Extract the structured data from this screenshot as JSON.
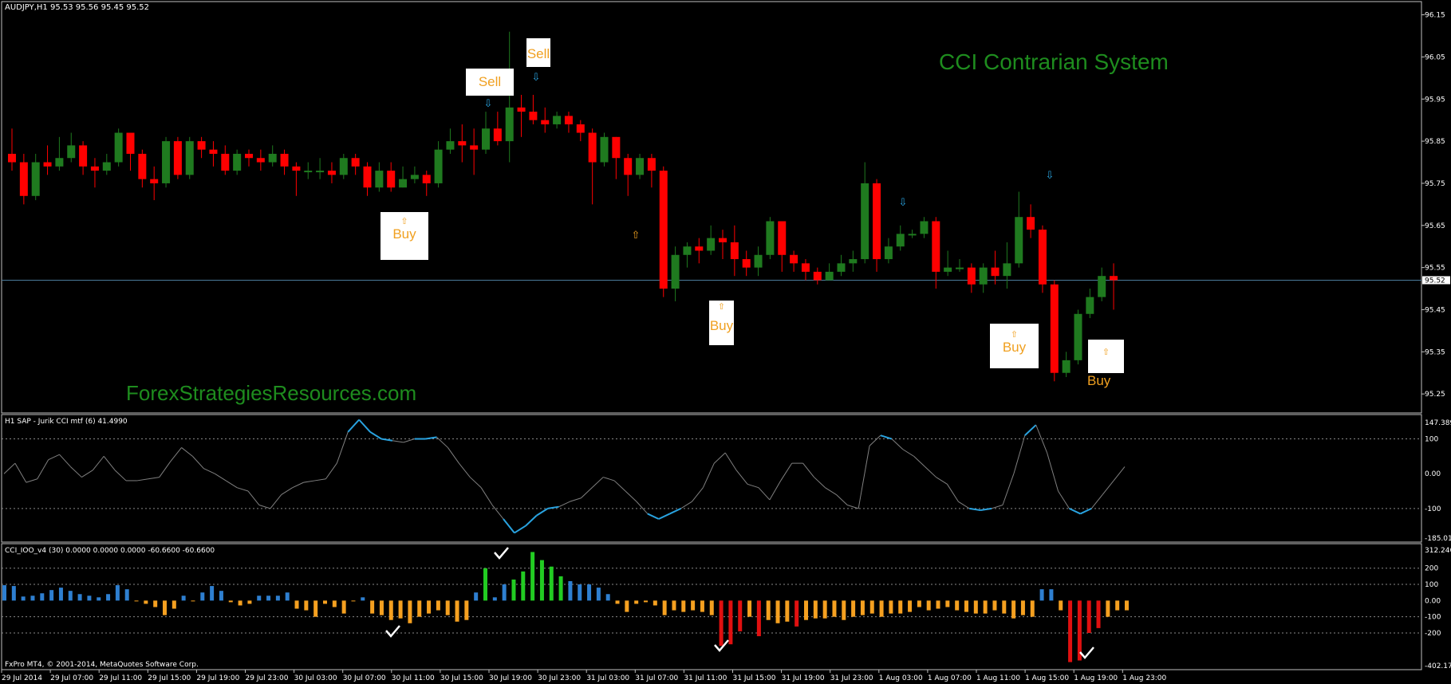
{
  "header": {
    "symbol_info": "AUDJPY,H1  95.53 95.56 95.45 95.52"
  },
  "overlay": {
    "system_title": "CCI Contrarian System",
    "website": "ForexStrategiesResources.com",
    "copyright": "FxPro MT4, © 2001-2014, MetaQuotes Software Corp."
  },
  "signals": {
    "buy_label": "Buy",
    "sell_label": "Sell",
    "up_arrow": "⇧",
    "down_arrow": "⇩"
  },
  "indicators": {
    "jurik_label": "H1 SAP - Jurik CCI mtf (6) 41.4990",
    "cci_label": "CCI_IOO_v4 (30) 0.0000 0.0000 0.0000 -60.6600 -60.6600"
  },
  "colors": {
    "bull": "#1f7a1f",
    "bear": "#ff0000",
    "cci_line": "#808080",
    "cci_extreme": "#29a3e0",
    "hist_blue": "#2e7fd0",
    "hist_orange": "#f5a020",
    "hist_green": "#22cc22",
    "hist_red": "#e01010",
    "signal_text": "#f0a020",
    "site_green": "#1e8c1e"
  },
  "price_axis": {
    "ticks": [
      "96.15",
      "96.05",
      "95.95",
      "95.85",
      "95.75",
      "95.65",
      "95.55",
      "95.45",
      "95.35",
      "95.25"
    ],
    "current": "95.52"
  },
  "jurik_axis": {
    "ticks": [
      "147.3893",
      "100",
      "0.00",
      "-100",
      "-185.0143"
    ]
  },
  "cci_axis": {
    "ticks": [
      "312.2467",
      "200",
      "100",
      "0.00",
      "-100",
      "-200",
      "-402.1705"
    ]
  },
  "time_axis": {
    "labels": [
      "29 Jul 2014",
      "29 Jul 07:00",
      "29 Jul 11:00",
      "29 Jul 15:00",
      "29 Jul 19:00",
      "29 Jul 23:00",
      "30 Jul 03:00",
      "30 Jul 07:00",
      "30 Jul 11:00",
      "30 Jul 15:00",
      "30 Jul 19:00",
      "30 Jul 23:00",
      "31 Jul 03:00",
      "31 Jul 07:00",
      "31 Jul 11:00",
      "31 Jul 15:00",
      "31 Jul 19:00",
      "31 Jul 23:00",
      "1 Aug 03:00",
      "1 Aug 07:00",
      "1 Aug 11:00",
      "1 Aug 15:00",
      "1 Aug 19:00",
      "1 Aug 23:00"
    ]
  },
  "chart_data": {
    "type": "candlestick",
    "candles": [
      [
        95.82,
        95.8,
        95.88,
        95.78
      ],
      [
        95.8,
        95.72,
        95.82,
        95.7
      ],
      [
        95.72,
        95.8,
        95.82,
        95.71
      ],
      [
        95.8,
        95.79,
        95.84,
        95.77
      ],
      [
        95.79,
        95.81,
        95.86,
        95.78
      ],
      [
        95.81,
        95.84,
        95.87,
        95.8
      ],
      [
        95.84,
        95.79,
        95.85,
        95.77
      ],
      [
        95.79,
        95.78,
        95.81,
        95.74
      ],
      [
        95.78,
        95.8,
        95.82,
        95.77
      ],
      [
        95.8,
        95.87,
        95.88,
        95.79
      ],
      [
        95.87,
        95.82,
        95.87,
        95.78
      ],
      [
        95.82,
        95.76,
        95.83,
        95.74
      ],
      [
        95.76,
        95.75,
        95.79,
        95.71
      ],
      [
        95.75,
        95.85,
        95.86,
        95.74
      ],
      [
        95.85,
        95.77,
        95.86,
        95.76
      ],
      [
        95.77,
        95.85,
        95.86,
        95.76
      ],
      [
        95.85,
        95.83,
        95.86,
        95.81
      ],
      [
        95.83,
        95.82,
        95.85,
        95.79
      ],
      [
        95.82,
        95.78,
        95.84,
        95.77
      ],
      [
        95.78,
        95.82,
        95.83,
        95.77
      ],
      [
        95.82,
        95.81,
        95.83,
        95.79
      ],
      [
        95.81,
        95.8,
        95.83,
        95.78
      ],
      [
        95.8,
        95.82,
        95.84,
        95.79
      ],
      [
        95.82,
        95.79,
        95.83,
        95.77
      ],
      [
        95.79,
        95.78,
        95.8,
        95.72
      ],
      [
        95.78,
        95.78,
        95.8,
        95.76
      ],
      [
        95.78,
        95.78,
        95.81,
        95.76
      ],
      [
        95.78,
        95.77,
        95.8,
        95.75
      ],
      [
        95.77,
        95.81,
        95.82,
        95.76
      ],
      [
        95.81,
        95.79,
        95.82,
        95.77
      ],
      [
        95.79,
        95.74,
        95.8,
        95.72
      ],
      [
        95.74,
        95.78,
        95.8,
        95.73
      ],
      [
        95.78,
        95.74,
        95.8,
        95.73
      ],
      [
        95.74,
        95.76,
        95.79,
        95.74
      ],
      [
        95.76,
        95.77,
        95.79,
        95.75
      ],
      [
        95.77,
        95.75,
        95.78,
        95.72
      ],
      [
        95.75,
        95.83,
        95.85,
        95.74
      ],
      [
        95.83,
        95.85,
        95.88,
        95.82
      ],
      [
        95.85,
        95.84,
        95.89,
        95.8
      ],
      [
        95.84,
        95.83,
        95.88,
        95.77
      ],
      [
        95.83,
        95.88,
        95.92,
        95.82
      ],
      [
        95.88,
        95.85,
        95.92,
        95.84
      ],
      [
        95.85,
        95.93,
        96.11,
        95.8
      ],
      [
        95.93,
        95.92,
        95.96,
        95.86
      ],
      [
        95.92,
        95.9,
        95.96,
        95.89
      ],
      [
        95.9,
        95.89,
        95.93,
        95.87
      ],
      [
        95.89,
        95.91,
        95.92,
        95.88
      ],
      [
        95.91,
        95.89,
        95.92,
        95.87
      ],
      [
        95.89,
        95.87,
        95.9,
        95.85
      ],
      [
        95.87,
        95.8,
        95.88,
        95.7
      ],
      [
        95.8,
        95.86,
        95.87,
        95.79
      ],
      [
        95.86,
        95.81,
        95.86,
        95.76
      ],
      [
        95.81,
        95.77,
        95.82,
        95.72
      ],
      [
        95.77,
        95.81,
        95.82,
        95.76
      ],
      [
        95.81,
        95.78,
        95.82,
        95.74
      ],
      [
        95.78,
        95.5,
        95.79,
        95.48
      ],
      [
        95.5,
        95.58,
        95.6,
        95.47
      ],
      [
        95.58,
        95.6,
        95.61,
        95.55
      ],
      [
        95.6,
        95.59,
        95.62,
        95.56
      ],
      [
        95.59,
        95.62,
        95.65,
        95.58
      ],
      [
        95.62,
        95.61,
        95.64,
        95.57
      ],
      [
        95.61,
        95.57,
        95.65,
        95.53
      ],
      [
        95.57,
        95.55,
        95.59,
        95.53
      ],
      [
        95.55,
        95.58,
        95.6,
        95.53
      ],
      [
        95.58,
        95.66,
        95.67,
        95.57
      ],
      [
        95.66,
        95.58,
        95.66,
        95.54
      ],
      [
        95.58,
        95.56,
        95.59,
        95.54
      ],
      [
        95.56,
        95.54,
        95.57,
        95.52
      ],
      [
        95.54,
        95.52,
        95.55,
        95.51
      ],
      [
        95.52,
        95.54,
        95.56,
        95.52
      ],
      [
        95.54,
        95.56,
        95.58,
        95.53
      ],
      [
        95.56,
        95.57,
        95.59,
        95.54
      ],
      [
        95.57,
        95.75,
        95.8,
        95.56
      ],
      [
        95.75,
        95.57,
        95.76,
        95.54
      ],
      [
        95.57,
        95.6,
        95.62,
        95.56
      ],
      [
        95.6,
        95.63,
        95.65,
        95.59
      ],
      [
        95.63,
        95.63,
        95.64,
        95.62
      ],
      [
        95.63,
        95.66,
        95.67,
        95.62
      ],
      [
        95.66,
        95.54,
        95.67,
        95.5
      ],
      [
        95.54,
        95.55,
        95.59,
        95.53
      ],
      [
        95.55,
        95.55,
        95.57,
        95.54
      ],
      [
        95.55,
        95.51,
        95.56,
        95.49
      ],
      [
        95.51,
        95.55,
        95.56,
        95.49
      ],
      [
        95.55,
        95.53,
        95.59,
        95.51
      ],
      [
        95.53,
        95.56,
        95.61,
        95.5
      ],
      [
        95.56,
        95.67,
        95.73,
        95.55
      ],
      [
        95.67,
        95.64,
        95.7,
        95.62
      ],
      [
        95.64,
        95.51,
        95.65,
        95.49
      ],
      [
        95.51,
        95.3,
        95.52,
        95.28
      ],
      [
        95.3,
        95.33,
        95.35,
        95.29
      ],
      [
        95.33,
        95.44,
        95.45,
        95.32
      ],
      [
        95.44,
        95.48,
        95.5,
        95.43
      ],
      [
        95.48,
        95.53,
        95.55,
        95.47
      ],
      [
        95.53,
        95.52,
        95.56,
        95.45
      ]
    ],
    "price_range": [
      95.22,
      96.17
    ],
    "jurik_cci": [
      0,
      30,
      -25,
      -15,
      40,
      55,
      20,
      -10,
      10,
      50,
      10,
      -20,
      -20,
      -15,
      -10,
      35,
      75,
      50,
      15,
      0,
      -20,
      -40,
      -50,
      -90,
      -100,
      -60,
      -40,
      -25,
      -20,
      -15,
      30,
      120,
      155,
      120,
      100,
      95,
      90,
      100,
      100,
      105,
      75,
      30,
      -10,
      -40,
      -90,
      -130,
      -170,
      -150,
      -120,
      -100,
      -95,
      -80,
      -70,
      -40,
      -10,
      -20,
      -50,
      -80,
      -115,
      -130,
      -115,
      -100,
      -80,
      -40,
      30,
      60,
      10,
      -30,
      -40,
      -75,
      -20,
      30,
      30,
      -10,
      -40,
      -60,
      -90,
      -100,
      80,
      110,
      100,
      70,
      50,
      20,
      -10,
      -30,
      -80,
      -100,
      -105,
      -100,
      -90,
      0,
      110,
      140,
      60,
      -50,
      -100,
      -115,
      -100,
      -60,
      -20,
      20
    ],
    "cci_hist": [
      95,
      90,
      25,
      30,
      45,
      65,
      80,
      60,
      40,
      30,
      20,
      40,
      95,
      70,
      0,
      -20,
      -40,
      -90,
      -50,
      30,
      0,
      50,
      90,
      60,
      -10,
      -30,
      -20,
      30,
      30,
      30,
      50,
      -50,
      -60,
      -100,
      -20,
      -40,
      -80,
      0,
      20,
      -80,
      -90,
      -120,
      -110,
      -140,
      -100,
      -80,
      -60,
      -90,
      -130,
      -120,
      50,
      200,
      20,
      100,
      130,
      180,
      300,
      250,
      210,
      150,
      120,
      100,
      100,
      80,
      40,
      -20,
      -70,
      -20,
      -10,
      -30,
      -90,
      -60,
      -70,
      -60,
      -70,
      -90,
      -280,
      -270,
      -190,
      -100,
      -220,
      -120,
      -140,
      -130,
      -160,
      -120,
      -110,
      -110,
      -100,
      -120,
      -100,
      -90,
      -80,
      -100,
      -80,
      -80,
      -70,
      -40,
      -60,
      -50,
      -40,
      -60,
      -70,
      -80,
      -80,
      -60,
      -80,
      -110,
      -90,
      -100,
      70,
      70,
      -60,
      -380,
      -370,
      -200,
      -170,
      -100,
      -60,
      -60
    ],
    "signals": [
      {
        "type": "buy",
        "candle": 32
      },
      {
        "type": "sell",
        "candle": 40
      },
      {
        "type": "sell",
        "candle": 44
      },
      {
        "type": "buy",
        "candle": 59
      },
      {
        "type": "buy",
        "candle": 88
      },
      {
        "type": "buy",
        "candle": 93
      }
    ]
  }
}
